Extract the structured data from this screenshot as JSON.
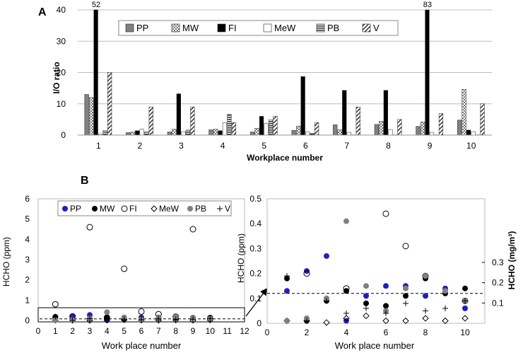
{
  "chart_data": [
    {
      "panel_label": "A",
      "type": "bar",
      "ylabel": "I/O ratio",
      "xlabel": "Workplace number",
      "ylim": [
        0,
        40
      ],
      "yticks": [
        "0",
        "10",
        "20",
        "30",
        "40"
      ],
      "categories": [
        "1",
        "2",
        "3",
        "4",
        "5",
        "6",
        "7",
        "8",
        "9",
        "10"
      ],
      "legend_position": "top-center",
      "grid": true,
      "series": [
        {
          "name": "PP",
          "pattern": "solid-gray",
          "values": [
            13,
            0.8,
            1,
            1.7,
            1,
            1.5,
            3.3,
            3.4,
            2.8,
            4.8
          ]
        },
        {
          "name": "MW",
          "pattern": "checker",
          "values": [
            12,
            1,
            1.9,
            1.9,
            2.2,
            2.9,
            1.7,
            4.4,
            4.2,
            14.6
          ]
        },
        {
          "name": "FI",
          "pattern": "solid-black",
          "values": [
            40,
            1.4,
            13.2,
            1.4,
            6,
            18.7,
            14.3,
            14.3,
            40,
            1.6
          ]
        },
        {
          "name": "MeW",
          "pattern": "white",
          "values": [
            0.3,
            1.9,
            1.1,
            4,
            3.7,
            1.1,
            0.9,
            1.8,
            0.9,
            1.1
          ]
        },
        {
          "name": "PB",
          "pattern": "hstripes",
          "values": [
            1.5,
            1,
            1.6,
            6.6,
            4.9,
            0.6,
            0.1,
            0.1,
            0.1,
            0.1
          ]
        },
        {
          "name": "V",
          "pattern": "diagonal",
          "values": [
            20,
            9,
            9,
            4,
            6,
            4,
            9,
            5,
            6.9,
            10
          ]
        }
      ],
      "annotations": [
        {
          "category": "1",
          "series": "FI",
          "text": "52"
        },
        {
          "category": "9",
          "series": "FI",
          "text": "83"
        }
      ]
    },
    {
      "panel_label": "B",
      "type": "scatter",
      "ylabel": "HCHO (ppm)",
      "xlabel": "Work place number",
      "xlim": [
        0,
        12
      ],
      "ylim": [
        0,
        6
      ],
      "xticks": [
        "0",
        "1",
        "2",
        "3",
        "4",
        "5",
        "6",
        "7",
        "8",
        "9",
        "10",
        "11",
        "12"
      ],
      "yticks": [
        "0",
        "1",
        "2",
        "3",
        "4",
        "5",
        "6"
      ],
      "legend_position": "top",
      "reference_line": 0.08,
      "series": [
        {
          "name": "PP",
          "marker": "filled-blue",
          "x": [
            1,
            2,
            3,
            4,
            5,
            6,
            7,
            8,
            9,
            10
          ],
          "y": [
            0.13,
            0.21,
            0.27,
            0.01,
            0.11,
            0.15,
            0.15,
            0.11,
            0.14,
            0.06
          ]
        },
        {
          "name": "MW",
          "marker": "filled-black",
          "x": [
            1,
            2,
            3,
            4,
            5,
            6,
            7,
            8,
            9,
            10
          ],
          "y": [
            0.18,
            0.01,
            0.09,
            0.13,
            0.08,
            0.07,
            0.11,
            0.18,
            0.12,
            0.14
          ]
        },
        {
          "name": "FI",
          "marker": "open-circle",
          "x": [
            1,
            2,
            3,
            4,
            5,
            6,
            7,
            8,
            9,
            10
          ],
          "y": [
            0.8,
            0.2,
            4.6,
            0.14,
            2.55,
            0.44,
            0.31,
            0.19,
            4.5,
            0.09
          ]
        },
        {
          "name": "MeW",
          "marker": "diamond",
          "x": [
            1,
            2,
            3,
            4,
            5,
            6,
            7,
            8,
            9,
            10
          ],
          "y": [
            0.01,
            0.01,
            0.003,
            0.02,
            0.03,
            0.01,
            0.01,
            0.02,
            0.01,
            0.02
          ]
        },
        {
          "name": "PB",
          "marker": "filled-gray",
          "x": [
            1,
            2,
            3,
            4,
            5,
            6,
            7,
            8,
            9,
            10
          ],
          "y": [
            0.01,
            0.02,
            0.1,
            0.41,
            0.15,
            0.05,
            0.14,
            0.19,
            0.13,
            0.09
          ]
        },
        {
          "name": "V",
          "marker": "plus",
          "x": [
            1,
            2,
            3,
            4,
            5,
            6,
            7,
            8,
            9,
            10
          ],
          "y": [
            0.19,
            0.01,
            0.09,
            0.04,
            0.06,
            0.04,
            0.08,
            0.05,
            0.06,
            0.09
          ]
        }
      ]
    },
    {
      "panel_label": "",
      "type": "scatter",
      "ylabel": "HCHO (ppm)",
      "ylabel_right": "HCHO (mg/m³)",
      "xlabel": "Work place number",
      "xlim": [
        0,
        11
      ],
      "ylim": [
        0,
        0.5
      ],
      "xticks": [
        "0",
        "2",
        "4",
        "6",
        "8",
        "10"
      ],
      "yticks": [
        "0",
        "0.1",
        "0.2",
        "0.3",
        "0.4",
        "0.5"
      ],
      "right_ticks": [
        "0.1",
        "0.2",
        "0.3"
      ],
      "reference_line": 0.12,
      "series_source": "zoom of panel B"
    }
  ]
}
